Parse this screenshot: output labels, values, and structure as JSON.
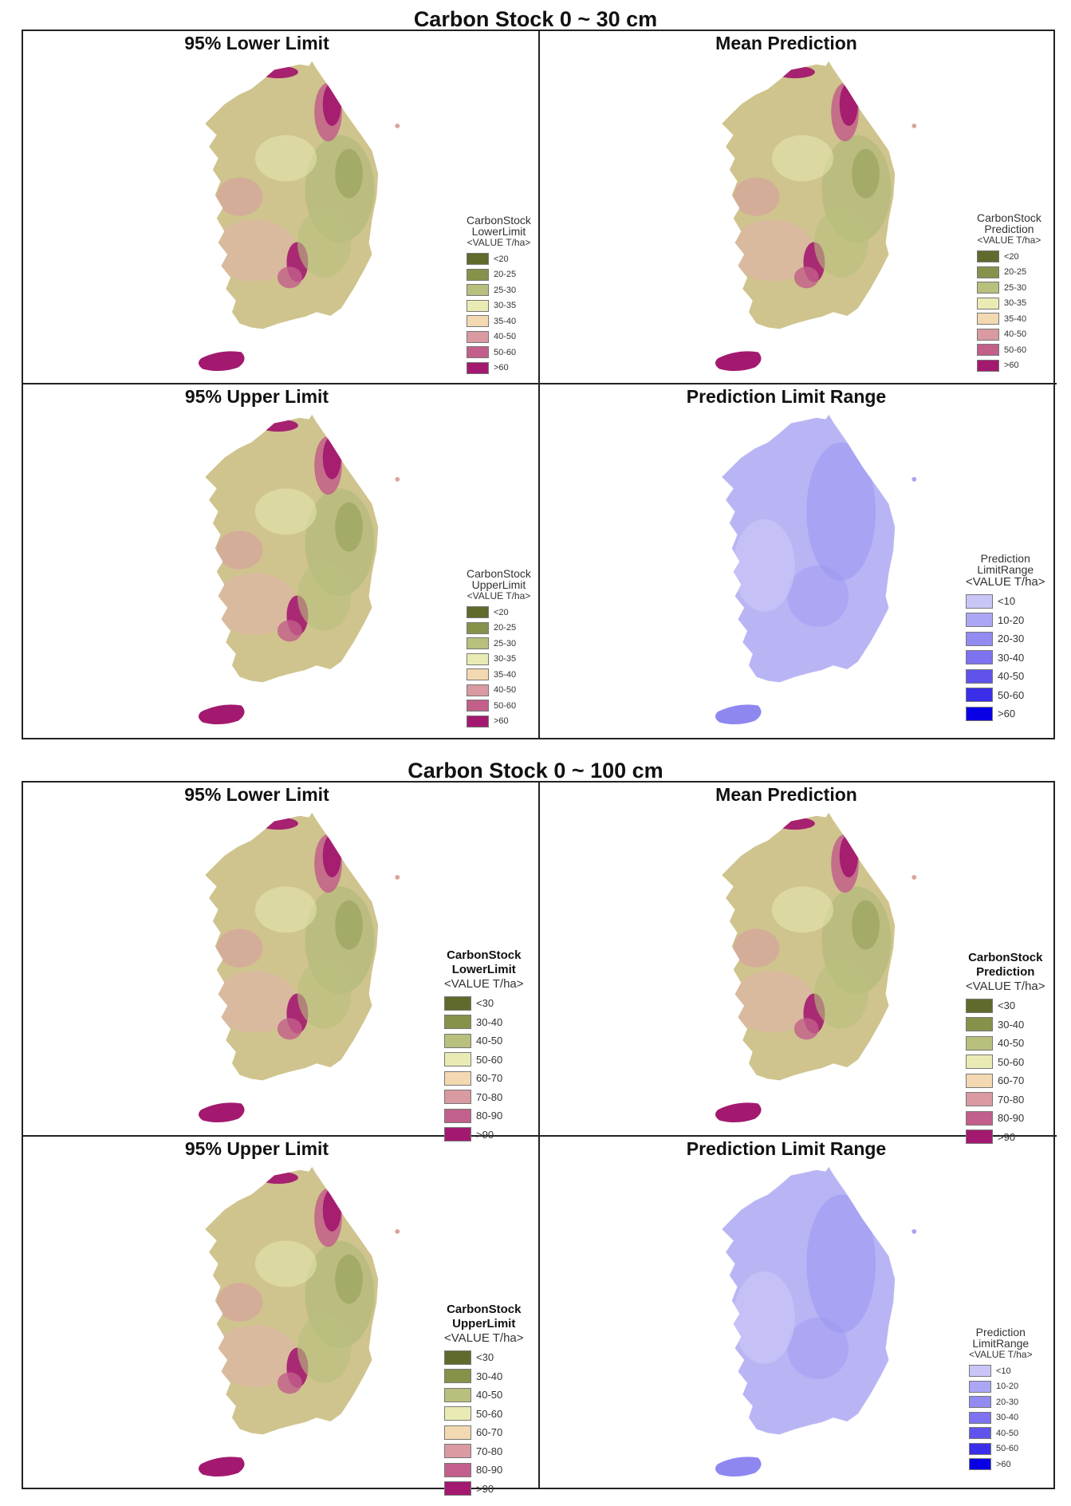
{
  "sections": [
    {
      "title": "Carbon Stock 0 ~ 30 cm",
      "panels": [
        {
          "title": "95% Lower Limit",
          "legend": {
            "line1": "CarbonStock",
            "line2": "LowerLimit",
            "unit": "<VALUE T/ha>",
            "bold": false,
            "items": [
              "<20",
              "20-25",
              "25-30",
              "30-35",
              "35-40",
              "40-50",
              "50-60",
              ">60"
            ]
          },
          "palette": "stock"
        },
        {
          "title": "Mean Prediction",
          "legend": {
            "line1": "CarbonStock",
            "line2": "Prediction",
            "unit": "<VALUE T/ha>",
            "bold": false,
            "items": [
              "<20",
              "20-25",
              "25-30",
              "30-35",
              "35-40",
              "40-50",
              "50-60",
              ">60"
            ]
          },
          "palette": "stock"
        },
        {
          "title": "95% Upper Limit",
          "legend": {
            "line1": "CarbonStock",
            "line2": "UpperLimit",
            "unit": "<VALUE T/ha>",
            "bold": false,
            "items": [
              "<20",
              "20-25",
              "25-30",
              "30-35",
              "35-40",
              "40-50",
              "50-60",
              ">60"
            ]
          },
          "palette": "stock"
        },
        {
          "title": "Prediction Limit Range",
          "legend": {
            "line1": "Prediction",
            "line2": "LimitRange",
            "unit": "<VALUE T/ha>",
            "bold": false,
            "items": [
              "<10",
              "10-20",
              "20-30",
              "30-40",
              "40-50",
              "50-60",
              ">60"
            ]
          },
          "palette": "range"
        }
      ]
    },
    {
      "title": "Carbon Stock 0 ~ 100 cm",
      "panels": [
        {
          "title": "95% Lower Limit",
          "legend": {
            "line1": "CarbonStock",
            "line2": "LowerLimit",
            "unit": "<VALUE T/ha>",
            "bold": true,
            "items": [
              "<30",
              "30-40",
              "40-50",
              "50-60",
              "60-70",
              "70-80",
              "80-90",
              ">90"
            ]
          },
          "palette": "stock"
        },
        {
          "title": "Mean Prediction",
          "legend": {
            "line1": "CarbonStock",
            "line2": "Prediction",
            "unit": "<VALUE T/ha>",
            "bold": true,
            "items": [
              "<30",
              "30-40",
              "40-50",
              "50-60",
              "60-70",
              "70-80",
              "80-90",
              ">90"
            ]
          },
          "palette": "stock"
        },
        {
          "title": "95% Upper Limit",
          "legend": {
            "line1": "CarbonStock",
            "line2": "UpperLimit",
            "unit": "<VALUE T/ha>",
            "bold": true,
            "items": [
              "<30",
              "30-40",
              "40-50",
              "50-60",
              "60-70",
              "70-80",
              "80-90",
              ">90"
            ]
          },
          "palette": "stock"
        },
        {
          "title": "Prediction Limit Range",
          "legend": {
            "line1": "Prediction",
            "line2": "LimitRange",
            "unit": "<VALUE T/ha>",
            "bold": false,
            "items": [
              "<10",
              "10-20",
              "20-30",
              "30-40",
              "40-50",
              "50-60",
              ">60"
            ]
          },
          "palette": "range"
        }
      ]
    }
  ],
  "colors": {
    "stock": [
      "#5f6a2c",
      "#86924a",
      "#b9bf7d",
      "#eaebb4",
      "#f3d9b1",
      "#d99aa2",
      "#c25f8a",
      "#a3196f"
    ],
    "range": [
      "#c9c6f7",
      "#aba7f4",
      "#928cf2",
      "#7d72ef",
      "#5f53ec",
      "#3a2ee8",
      "#0a00e6"
    ],
    "map_stock_fill": "#cfc48e",
    "map_stock_hot": "#a3196f",
    "map_range_fill": "#b9b5f5",
    "map_range_dark": "#9a93f1"
  }
}
